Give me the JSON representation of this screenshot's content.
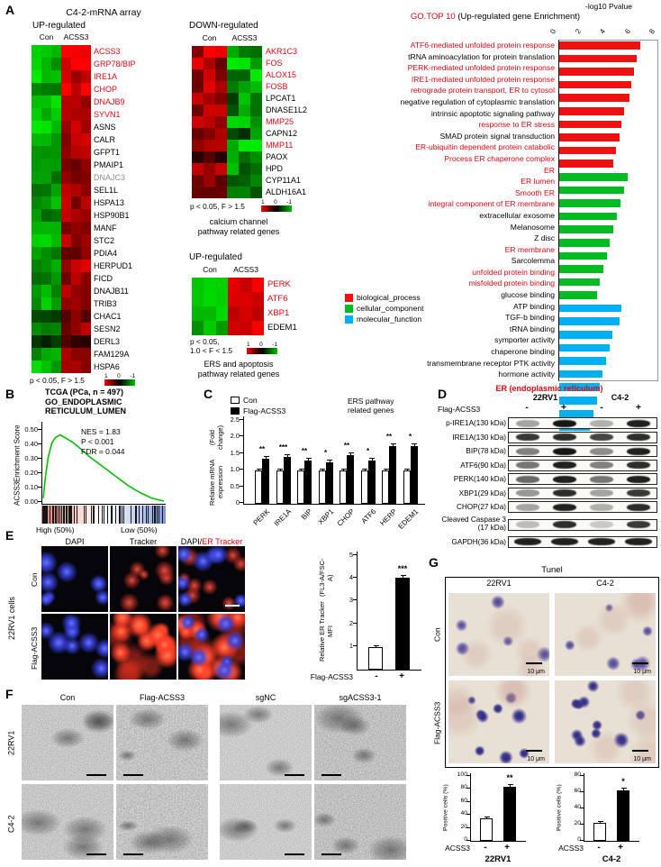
{
  "panel_labels": {
    "a": "A",
    "b": "B",
    "c": "C",
    "d": "D",
    "e": "E",
    "f": "F",
    "g": "G"
  },
  "panelA": {
    "title": "C4-2-mRNA array",
    "up": {
      "title": "UP-regulated",
      "cols": [
        "Con",
        "ACSS3"
      ],
      "caption": "p < 0.05, F > 1.5",
      "scale": [
        "1",
        "0",
        "-1"
      ],
      "genes": [
        {
          "n": "ACSS3",
          "c": "red",
          "v": [
            -0.9,
            0.95
          ]
        },
        {
          "n": "GRP78/BIP",
          "c": "red",
          "v": [
            -0.8,
            0.85
          ]
        },
        {
          "n": "IRE1A",
          "c": "red",
          "v": [
            -0.85,
            0.8
          ]
        },
        {
          "n": "CHOP",
          "c": "red",
          "v": [
            -0.7,
            0.9
          ]
        },
        {
          "n": "DNAJB9",
          "c": "red",
          "v": [
            -0.8,
            0.75
          ]
        },
        {
          "n": "SYVN1",
          "c": "red",
          "v": [
            -0.75,
            0.8
          ]
        },
        {
          "n": "ASNS",
          "c": "black",
          "v": [
            -0.9,
            0.7
          ]
        },
        {
          "n": "CALR",
          "c": "black",
          "v": [
            -0.6,
            0.65
          ]
        },
        {
          "n": "GFPT1",
          "c": "black",
          "v": [
            -0.7,
            0.6
          ]
        },
        {
          "n": "PMAIP1",
          "c": "black",
          "v": [
            -0.5,
            0.55
          ]
        },
        {
          "n": "DNAJC3",
          "c": "gray",
          "v": [
            -0.6,
            0.5
          ]
        },
        {
          "n": "SEL1L",
          "c": "black",
          "v": [
            -0.65,
            0.6
          ]
        },
        {
          "n": "HSPA13",
          "c": "black",
          "v": [
            -0.7,
            0.65
          ]
        },
        {
          "n": "HSP90B1",
          "c": "black",
          "v": [
            -0.55,
            0.7
          ]
        },
        {
          "n": "MANF",
          "c": "black",
          "v": [
            -0.6,
            0.6
          ]
        },
        {
          "n": "STC2",
          "c": "black",
          "v": [
            -0.75,
            0.65
          ]
        },
        {
          "n": "PDIA4",
          "c": "black",
          "v": [
            -0.65,
            0.55
          ]
        },
        {
          "n": "HERPUD1",
          "c": "black",
          "v": [
            -0.7,
            0.7
          ]
        },
        {
          "n": "FICD",
          "c": "black",
          "v": [
            -0.6,
            0.6
          ]
        },
        {
          "n": "DNAJB11",
          "c": "black",
          "v": [
            -0.65,
            0.65
          ]
        },
        {
          "n": "TRIB3",
          "c": "black",
          "v": [
            -0.7,
            0.6
          ]
        },
        {
          "n": "CHAC1",
          "c": "black",
          "v": [
            -0.35,
            0.5
          ]
        },
        {
          "n": "SESN2",
          "c": "black",
          "v": [
            -0.6,
            0.55
          ]
        },
        {
          "n": "DERL3",
          "c": "black",
          "v": [
            -0.25,
            0.35
          ]
        },
        {
          "n": "FAM129A",
          "c": "black",
          "v": [
            -0.7,
            0.6
          ]
        },
        {
          "n": "HSPA6",
          "c": "black",
          "v": [
            -0.8,
            0.7
          ]
        }
      ]
    },
    "down": {
      "title": "DOWN-regulated",
      "cols": [
        "Con",
        "ACSS3"
      ],
      "caption": "p < 0.05, F > 1.5",
      "scale": [
        "1",
        "0",
        "-1"
      ],
      "footer": [
        "calcium channel",
        "pathway related genes"
      ],
      "genes": [
        {
          "n": "AKR1C3",
          "c": "red",
          "v": [
            0.85,
            -0.8
          ]
        },
        {
          "n": "FOS",
          "c": "red",
          "v": [
            0.7,
            -0.85
          ]
        },
        {
          "n": "ALOX15",
          "c": "red",
          "v": [
            0.8,
            -0.7
          ]
        },
        {
          "n": "FOSB",
          "c": "red",
          "v": [
            0.75,
            -0.8
          ]
        },
        {
          "n": "LPCAT1",
          "c": "black",
          "v": [
            0.6,
            -0.6
          ]
        },
        {
          "n": "DNASE1L2",
          "c": "black",
          "v": [
            0.5,
            -0.7
          ]
        },
        {
          "n": "MMP25",
          "c": "red",
          "v": [
            0.7,
            -0.6
          ]
        },
        {
          "n": "CAPN12",
          "c": "black",
          "v": [
            0.55,
            -0.5
          ]
        },
        {
          "n": "MMP11",
          "c": "red",
          "v": [
            0.8,
            -0.75
          ]
        },
        {
          "n": "PAOX",
          "c": "black",
          "v": [
            0.5,
            -0.6
          ]
        },
        {
          "n": "HPD",
          "c": "black",
          "v": [
            0.6,
            -0.5
          ]
        },
        {
          "n": "CYP11A1",
          "c": "black",
          "v": [
            0.45,
            -0.65
          ]
        },
        {
          "n": "ALDH16A1",
          "c": "black",
          "v": [
            0.65,
            -0.7
          ]
        }
      ]
    },
    "up2": {
      "title": "UP-regulated",
      "cols": [
        "Con",
        "ACSS3"
      ],
      "caption": [
        "p < 0.05,",
        "1.0 < F < 1.5"
      ],
      "scale": [
        "1",
        "0",
        "-1"
      ],
      "footer": [
        "ERS and apoptosis",
        "pathway related genes"
      ],
      "genes": [
        {
          "n": "PERK",
          "c": "red",
          "v": [
            -0.85,
            0.9
          ]
        },
        {
          "n": "ATF6",
          "c": "red",
          "v": [
            -0.8,
            0.85
          ]
        },
        {
          "n": "XBP1",
          "c": "red",
          "v": [
            -0.9,
            0.8
          ]
        },
        {
          "n": "EDEM1",
          "c": "black",
          "v": [
            -0.75,
            0.85
          ]
        }
      ]
    },
    "go": {
      "title_red": "GO.TOP 10",
      "title_rest": " (Up-regulated gene Enrichment)",
      "axis_label": "-log10 Pvalue",
      "max": 8,
      "ticks": [
        0,
        2,
        4,
        6,
        8
      ],
      "legend": [
        {
          "label": "biological_process",
          "color": "#ee1111"
        },
        {
          "label": "cellular_component",
          "color": "#00bb22"
        },
        {
          "label": "molecular_function",
          "color": "#00b0f0"
        }
      ],
      "footnote": "ER (endoplasmic reticulum)",
      "bars": [
        {
          "label": "ATF6-mediated unfolded protein response",
          "value": 6.6,
          "group": "bp",
          "red": true
        },
        {
          "label": "tRNA aminoacylation for protein translation",
          "value": 6.3,
          "group": "bp",
          "red": false
        },
        {
          "label": "PERK-mediated unfolded protein response",
          "value": 6.1,
          "group": "bp",
          "red": true
        },
        {
          "label": "IRE1-mediated unfolded protein response",
          "value": 5.9,
          "group": "bp",
          "red": true
        },
        {
          "label": "retrograde protein transport, ER to cytosol",
          "value": 5.7,
          "group": "bp",
          "red": true
        },
        {
          "label": "negative regulation of cytoplasmic translation",
          "value": 5.3,
          "group": "bp",
          "red": false
        },
        {
          "label": "intrinsic apoptotic signaling pathway",
          "value": 5.1,
          "group": "bp",
          "red": false
        },
        {
          "label": "response to ER stress",
          "value": 4.9,
          "group": "bp",
          "red": true
        },
        {
          "label": "SMAD protein signal transduction",
          "value": 4.6,
          "group": "bp",
          "red": false
        },
        {
          "label": "ER-ubiquitin dependent protein catabolic",
          "value": 4.4,
          "group": "bp",
          "red": true
        },
        {
          "label": "Process ER chaperone complex",
          "value": 5.6,
          "group": "cc",
          "red": true
        },
        {
          "label": "ER",
          "value": 5.3,
          "group": "cc",
          "red": true
        },
        {
          "label": "ER lumen",
          "value": 5.0,
          "group": "cc",
          "red": true
        },
        {
          "label": "Smooth ER",
          "value": 4.7,
          "group": "cc",
          "red": true
        },
        {
          "label": "integral component of ER membrane",
          "value": 4.4,
          "group": "cc",
          "red": true
        },
        {
          "label": "extracellular exosome",
          "value": 4.1,
          "group": "cc",
          "red": false
        },
        {
          "label": "Melanosome",
          "value": 3.9,
          "group": "cc",
          "red": false
        },
        {
          "label": "Z disc",
          "value": 3.6,
          "group": "cc",
          "red": false
        },
        {
          "label": "ER membrane",
          "value": 3.3,
          "group": "cc",
          "red": true
        },
        {
          "label": "Sarcolemma",
          "value": 3.1,
          "group": "cc",
          "red": false
        },
        {
          "label": "unfolded protein binding",
          "value": 5.1,
          "group": "mf",
          "red": true
        },
        {
          "label": "misfolded protein binding",
          "value": 4.9,
          "group": "mf",
          "red": true
        },
        {
          "label": "glucose binding",
          "value": 4.3,
          "group": "mf",
          "red": false
        },
        {
          "label": "ATP binding",
          "value": 4.1,
          "group": "mf",
          "red": false
        },
        {
          "label": "TGF-b binding",
          "value": 3.8,
          "group": "mf",
          "red": false
        },
        {
          "label": "tRNA binding",
          "value": 3.5,
          "group": "mf",
          "red": false
        },
        {
          "label": "symporter activity",
          "value": 3.3,
          "group": "mf",
          "red": false
        },
        {
          "label": "chaperone binding",
          "value": 3.1,
          "group": "mf",
          "red": false
        },
        {
          "label": "transmembrane receptor PTK activity",
          "value": 2.8,
          "group": "mf",
          "red": false
        },
        {
          "label": "hormone activity",
          "value": 2.5,
          "group": "mf",
          "red": false
        }
      ]
    }
  },
  "panelB": {
    "header": [
      "TCGA (PCa, n = 497)",
      "GO_ENDOPLASMIC",
      "RETICULUM_LUMEN"
    ],
    "ylabel": [
      "ACSS3",
      "Enrichment Score"
    ],
    "yticks": [
      "0.50",
      "0.40",
      "0.30",
      "0.20",
      "0.10",
      "0.00"
    ],
    "stats": [
      "NES  =  1.83",
      "P  <  0.001",
      "FDR = 0.044"
    ],
    "xlabels": [
      "High (50%)",
      "Low (50%)"
    ],
    "curve": [
      [
        0,
        0.02
      ],
      [
        2,
        0.18
      ],
      [
        4,
        0.3
      ],
      [
        7,
        0.4
      ],
      [
        10,
        0.44
      ],
      [
        14,
        0.46
      ],
      [
        18,
        0.44
      ],
      [
        24,
        0.41
      ],
      [
        30,
        0.37
      ],
      [
        38,
        0.31
      ],
      [
        46,
        0.26
      ],
      [
        54,
        0.21
      ],
      [
        62,
        0.16
      ],
      [
        70,
        0.11
      ],
      [
        80,
        0.06
      ],
      [
        90,
        0.02
      ],
      [
        100,
        0
      ]
    ]
  },
  "panelC": {
    "legend": [
      "Con",
      "Flag-ACSS3"
    ],
    "note": [
      "ERS pathway",
      "related genes"
    ],
    "ylabel": [
      "Relative mRNA expression",
      "(Fold change)"
    ],
    "ymax": 2.5,
    "yticks": [
      "0",
      "0.5",
      "1.0",
      "1.5",
      "2.0",
      "2.5"
    ],
    "categories": [
      "PERK",
      "IRE1A",
      "BIP",
      "XBP1",
      "CHOP",
      "ATF6",
      "HERP",
      "EDEM1"
    ],
    "con": [
      1,
      1,
      1,
      1,
      1,
      1,
      1,
      1
    ],
    "flag": [
      1.35,
      1.42,
      1.3,
      1.25,
      1.48,
      1.3,
      1.75,
      1.75
    ],
    "sig": [
      "**",
      "***",
      "**",
      "*",
      "**",
      "*",
      "**",
      "*"
    ]
  },
  "panelD": {
    "groups": [
      "22RV1",
      "C4-2"
    ],
    "row_label": "Flag-ACSS3",
    "signs": [
      "-",
      "+",
      "-",
      "+"
    ],
    "proteins": [
      {
        "name": "p-IRE1A(130 kDa)",
        "bands": [
          0.35,
          0.95,
          0.3,
          0.9
        ]
      },
      {
        "name": "IRE1A(130 kDa)",
        "bands": [
          0.8,
          0.85,
          0.75,
          0.85
        ]
      },
      {
        "name": "BIP(78 kDa)",
        "bands": [
          0.5,
          0.95,
          0.45,
          0.9
        ]
      },
      {
        "name": "ATF6(90 kDa)",
        "bands": [
          0.55,
          0.9,
          0.5,
          0.85
        ]
      },
      {
        "name": "PERK(140 kDa)",
        "bands": [
          0.6,
          0.9,
          0.55,
          0.9
        ]
      },
      {
        "name": "XBP1(29 kDa)",
        "bands": [
          0.4,
          0.85,
          0.35,
          0.8
        ]
      },
      {
        "name": "CHOP(27 kDa)",
        "bands": [
          0.35,
          0.9,
          0.3,
          0.85
        ]
      },
      {
        "name": "Cleaved Caspase 3",
        "name2": "(17 kDa)",
        "bands": [
          0.25,
          0.85,
          0.2,
          0.8
        ]
      },
      {
        "name": "GAPDH(36 kDa)",
        "bands": [
          0.9,
          0.9,
          0.9,
          0.9
        ]
      }
    ]
  },
  "panelE": {
    "cols": [
      "DAPI",
      "Tracker"
    ],
    "merge_prefix": "DAPI/",
    "merge_red": "ER Tracker",
    "rows": [
      "Con",
      "Flag-ACSS3"
    ],
    "side": "22RV1 cells",
    "chart": {
      "ylabel": [
        "Relative ER Tracker MFI",
        "(FL3-A/FSC-A)"
      ],
      "ymax": 5,
      "yticks": [
        "1",
        "2",
        "3",
        "4",
        "5"
      ],
      "con": 1.0,
      "flag": 4.05,
      "sig": "***",
      "xaxis": "Flag-ACSS3",
      "signs": [
        "-",
        "+"
      ]
    }
  },
  "panelF": {
    "cols": [
      "Con",
      "Flag-ACSS3",
      "sgNC",
      "sgACSS3-1"
    ],
    "rows": [
      "22RV1",
      "C4-2"
    ]
  },
  "panelG": {
    "title": "Tunel",
    "cols": [
      "22RV1",
      "C4-2"
    ],
    "rows": [
      "Con",
      "Flag-ACSS3"
    ],
    "scalebar": "10 μm",
    "charts": [
      {
        "title": "22RV1",
        "ylabel": "Positive cells (%)",
        "ymax": 100,
        "yticks": [
          "0",
          "20",
          "40",
          "60",
          "80",
          "100"
        ],
        "con": 35,
        "flag": 84,
        "sig": "**",
        "xaxis": "ACSS3",
        "signs": [
          "-",
          "+"
        ]
      },
      {
        "title": "C4-2",
        "ylabel": "Positive cells (%)",
        "ymax": 80,
        "yticks": [
          "0",
          "20",
          "40",
          "60",
          "80"
        ],
        "con": 22,
        "flag": 62,
        "sig": "*",
        "xaxis": "ACSS3",
        "signs": [
          "-",
          "+"
        ]
      }
    ]
  }
}
